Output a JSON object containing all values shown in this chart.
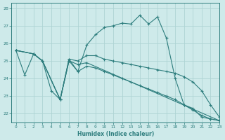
{
  "xlabel": "Humidex (Indice chaleur)",
  "xlim": [
    -0.5,
    23
  ],
  "ylim": [
    21.5,
    28.3
  ],
  "yticks": [
    22,
    23,
    24,
    25,
    26,
    27,
    28
  ],
  "xticks": [
    0,
    1,
    2,
    3,
    4,
    5,
    6,
    7,
    8,
    9,
    10,
    11,
    12,
    13,
    14,
    15,
    16,
    17,
    18,
    19,
    20,
    21,
    22,
    23
  ],
  "background_color": "#ceeaea",
  "grid_color": "#aed4d4",
  "line_color": "#2d7d7d",
  "line1": {
    "x": [
      0,
      1,
      2,
      3,
      4,
      5,
      6,
      7,
      8,
      9,
      10,
      11,
      12,
      13,
      14,
      15,
      16,
      17,
      18,
      19,
      20,
      21,
      22,
      23
    ],
    "y": [
      25.6,
      24.2,
      25.4,
      25.0,
      23.3,
      22.8,
      25.1,
      24.4,
      25.9,
      26.5,
      26.9,
      27.0,
      27.15,
      27.1,
      27.6,
      27.1,
      27.5,
      26.3,
      24.0,
      22.5,
      22.3,
      21.8,
      21.7,
      21.6
    ]
  },
  "line2": {
    "x": [
      0,
      2,
      3,
      5,
      6,
      7,
      8,
      9,
      10,
      11,
      12,
      13,
      14,
      15,
      16,
      17,
      18,
      19,
      20,
      21,
      22,
      23
    ],
    "y": [
      25.6,
      25.4,
      25.0,
      22.8,
      25.1,
      25.0,
      25.3,
      25.3,
      25.1,
      25.0,
      24.9,
      24.8,
      24.7,
      24.6,
      24.5,
      24.4,
      24.3,
      24.1,
      23.8,
      23.3,
      22.5,
      21.8
    ]
  },
  "line3": {
    "x": [
      0,
      2,
      3,
      5,
      6,
      7,
      8,
      23
    ],
    "y": [
      25.6,
      25.4,
      25.0,
      22.8,
      25.0,
      24.8,
      24.9,
      21.6
    ]
  },
  "line4": {
    "x": [
      0,
      2,
      3,
      5,
      6,
      7,
      8,
      9,
      10,
      11,
      12,
      13,
      14,
      15,
      16,
      17,
      18,
      19,
      20,
      21,
      22,
      23
    ],
    "y": [
      25.6,
      25.4,
      25.0,
      22.8,
      25.0,
      24.4,
      24.7,
      24.6,
      24.4,
      24.2,
      24.0,
      23.8,
      23.6,
      23.4,
      23.2,
      23.0,
      22.8,
      22.5,
      22.2,
      21.9,
      21.7,
      21.6
    ]
  }
}
